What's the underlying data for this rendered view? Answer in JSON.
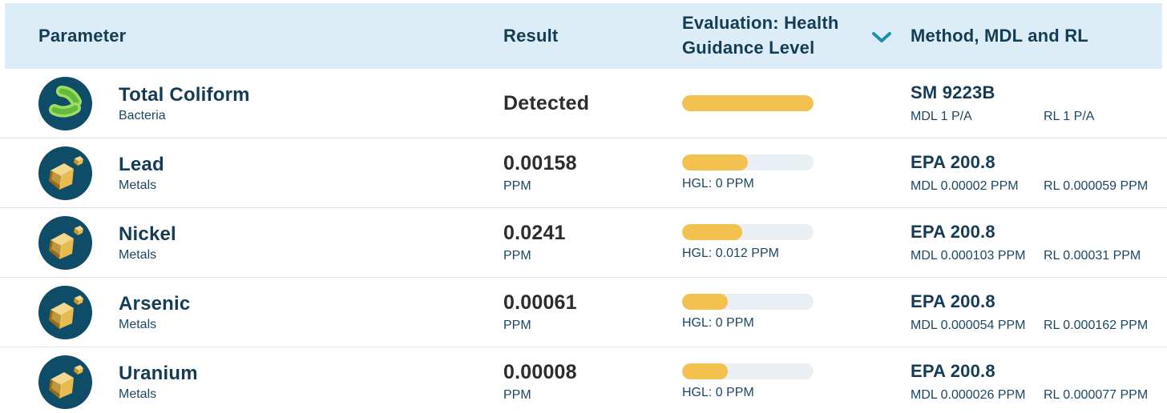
{
  "colors": {
    "header_bg": "#dcedf8",
    "navy_text": "#153c56",
    "navy_sub_text": "#1c4763",
    "result_text": "#2d2d2d",
    "bar_fill": "#f3c150",
    "bar_track": "#e9eff3",
    "chevron_teal": "#1d8fa8",
    "icon_circle": "#0e4c68",
    "divider": "#e4e4e4"
  },
  "header": {
    "parameter_label": "Parameter",
    "result_label": "Result",
    "evaluation_label": "Evaluation: Health Guidance Level",
    "method_label": "Method, MDL and RL"
  },
  "rows": [
    {
      "name": "Total Coliform",
      "category": "Bacteria",
      "result": "Detected",
      "unit": "",
      "bar_fill_pct": 100,
      "hgl": "",
      "method": "SM 9223B",
      "mdl": "MDL 1 P/A",
      "rl": "RL 1 P/A",
      "icon": "bacteria-icon"
    },
    {
      "name": "Lead",
      "category": "Metals",
      "result": "0.00158",
      "unit": "PPM",
      "bar_fill_pct": 50,
      "hgl": "HGL: 0 PPM",
      "method": "EPA 200.8",
      "mdl": "MDL 0.00002 PPM",
      "rl": "RL 0.000059 PPM",
      "icon": "metal-nugget-icon"
    },
    {
      "name": "Nickel",
      "category": "Metals",
      "result": "0.0241",
      "unit": "PPM",
      "bar_fill_pct": 46,
      "hgl": "HGL: 0.012 PPM",
      "method": "EPA 200.8",
      "mdl": "MDL 0.000103 PPM",
      "rl": "RL 0.00031 PPM",
      "icon": "metal-nugget-icon"
    },
    {
      "name": "Arsenic",
      "category": "Metals",
      "result": "0.00061",
      "unit": "PPM",
      "bar_fill_pct": 35,
      "hgl": "HGL: 0 PPM",
      "method": "EPA 200.8",
      "mdl": "MDL 0.000054 PPM",
      "rl": "RL 0.000162 PPM",
      "icon": "metal-nugget-icon"
    },
    {
      "name": "Uranium",
      "category": "Metals",
      "result": "0.00008",
      "unit": "PPM",
      "bar_fill_pct": 35,
      "hgl": "HGL: 0 PPM",
      "method": "EPA 200.8",
      "mdl": "MDL 0.000026 PPM",
      "rl": "RL 0.000077 PPM",
      "icon": "metal-nugget-icon"
    }
  ]
}
